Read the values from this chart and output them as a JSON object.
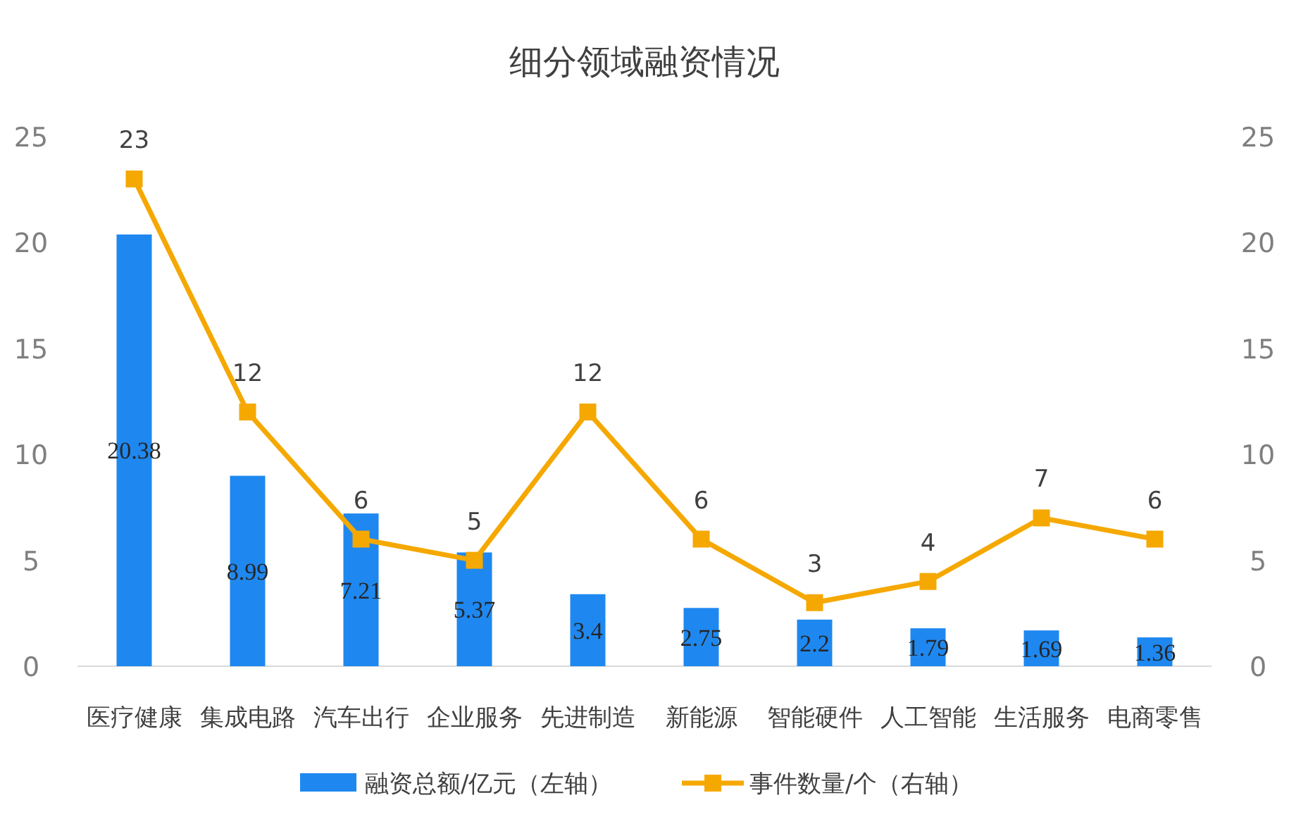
{
  "chart_data": {
    "type": "bar",
    "title": "细分领域融资情况",
    "categories": [
      "医疗健康",
      "集成电路",
      "汽车出行",
      "企业服务",
      "先进制造",
      "新能源",
      "智能硬件",
      "人工智能",
      "生活服务",
      "电商零售"
    ],
    "series": [
      {
        "name": "融资总额/亿元（左轴）",
        "color": "#1e88f0",
        "values": [
          20.38,
          8.99,
          7.21,
          5.37,
          3.4,
          2.75,
          2.2,
          1.79,
          1.69,
          1.36
        ]
      },
      {
        "name": "事件数量/个（右轴）",
        "type": "line",
        "axis": "y2",
        "color": "#f5a800",
        "marker": "square",
        "values": [
          23,
          12,
          6,
          5,
          12,
          6,
          3,
          4,
          7,
          6
        ]
      }
    ],
    "ylim": [
      0,
      25
    ],
    "yticks": [
      0,
      5,
      10,
      15,
      20,
      25
    ],
    "y2lim": [
      0,
      25
    ],
    "y2ticks": [
      0,
      5,
      10,
      15,
      20,
      25
    ],
    "data_labels": true,
    "legend": "bottom",
    "grid": false
  }
}
